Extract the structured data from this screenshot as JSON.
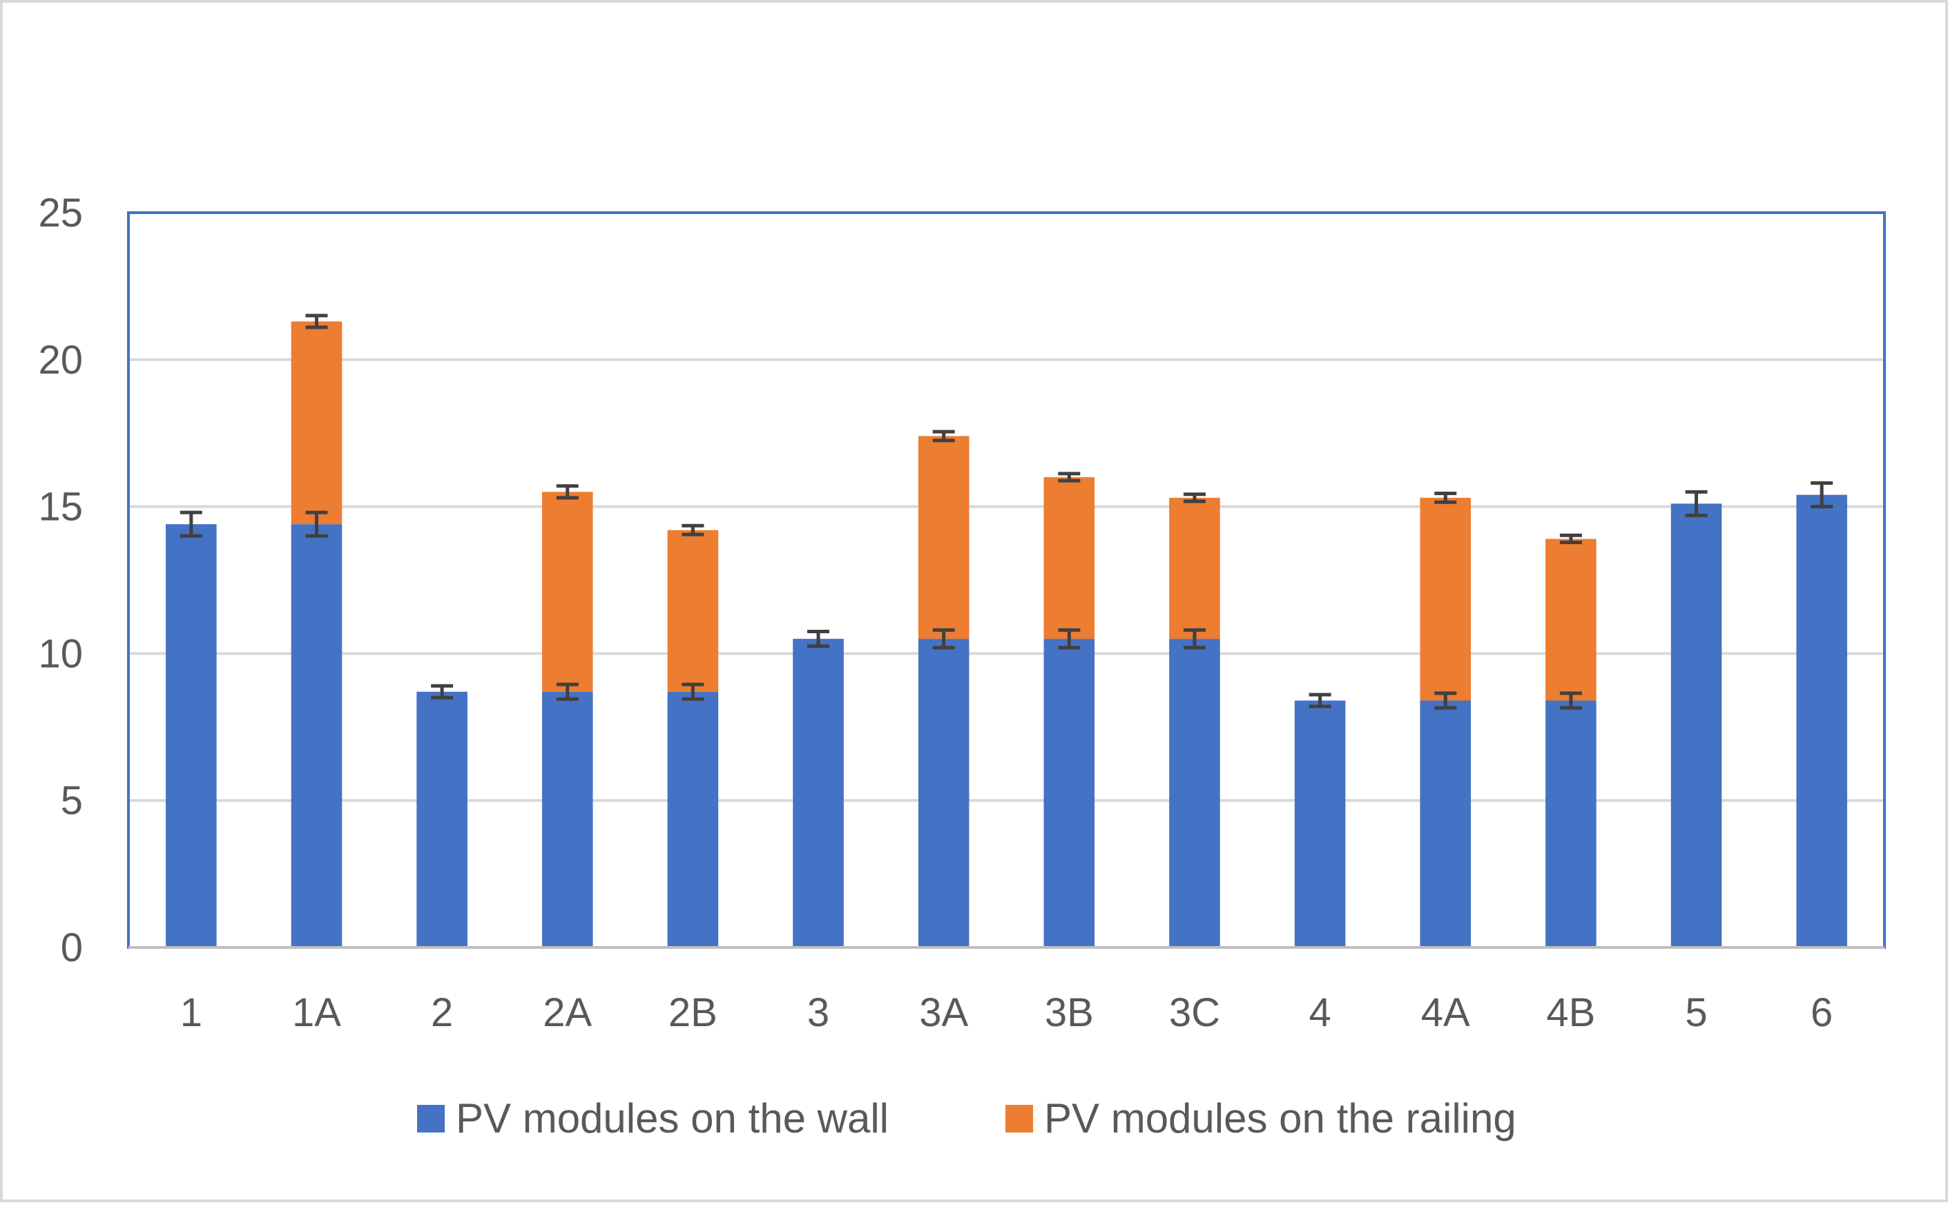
{
  "chart_data": {
    "type": "bar",
    "stacked": true,
    "title": "",
    "xlabel": "",
    "ylabel": "",
    "ylim": [
      0,
      25
    ],
    "yticks": [
      0,
      5,
      10,
      15,
      20,
      25
    ],
    "grid": true,
    "legend_position": "bottom",
    "categories": [
      "1",
      "1A",
      "2",
      "2A",
      "2B",
      "3",
      "3A",
      "3B",
      "3C",
      "4",
      "4A",
      "4B",
      "5",
      "6"
    ],
    "series": [
      {
        "name": "PV modules on the wall",
        "color": "#4472c4",
        "values": [
          14.4,
          14.4,
          8.7,
          8.7,
          8.7,
          10.5,
          10.5,
          10.5,
          10.5,
          8.4,
          8.4,
          8.4,
          15.1,
          15.4
        ],
        "error": [
          0.4,
          0.4,
          0.2,
          0.25,
          0.25,
          0.25,
          0.3,
          0.3,
          0.3,
          0.2,
          0.25,
          0.25,
          0.4,
          0.4
        ]
      },
      {
        "name": "PV modules on the railing",
        "color": "#ed7d31",
        "values": [
          0,
          6.9,
          0,
          6.8,
          5.5,
          0,
          6.9,
          5.5,
          4.8,
          0,
          6.9,
          5.5,
          0,
          0
        ],
        "error": [
          0,
          0.2,
          0,
          0.2,
          0.15,
          0,
          0.15,
          0.12,
          0.12,
          0,
          0.15,
          0.12,
          0,
          0
        ]
      }
    ],
    "colors": {
      "plot_border": "#4472c4",
      "gridline": "#d9d9d9",
      "axis": "#bfbfbf",
      "error_bar": "#404040",
      "text": "#595959"
    }
  }
}
